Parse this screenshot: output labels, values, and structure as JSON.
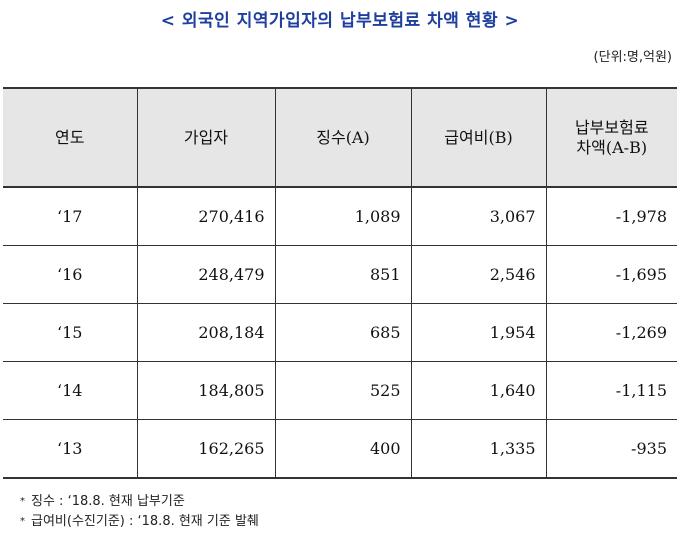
{
  "title": "< 외국인 지역가입자의 납부보험료 차액 현황 >",
  "unit": "(단위:명,억원)",
  "table": {
    "headers": [
      "연도",
      "가입자",
      "징수(A)",
      "급여비(B)",
      "납부보험료\n차액(A-B)"
    ],
    "rows": [
      [
        "‘17",
        "270,416",
        "1,089",
        "3,067",
        "-1,978"
      ],
      [
        "‘16",
        "248,479",
        "851",
        "2,546",
        "-1,695"
      ],
      [
        "‘15",
        "208,184",
        "685",
        "1,954",
        "-1,269"
      ],
      [
        "‘14",
        "184,805",
        "525",
        "1,640",
        "-1,115"
      ],
      [
        "‘13",
        "162,265",
        "400",
        "1,335",
        "-935"
      ]
    ]
  },
  "notes": [
    {
      "bullet": "*",
      "text": "징수 : ‘18.8. 현재 납부기준"
    },
    {
      "bullet": "*",
      "text": "급여비(수진기준) : ‘18.8. 현재 기준 발췌"
    }
  ]
}
